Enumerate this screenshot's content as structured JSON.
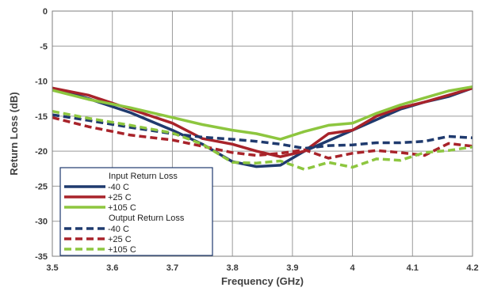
{
  "chart_data": {
    "type": "line",
    "title": "",
    "xlabel": "Frequency (GHz)",
    "ylabel": "Return Loss (dB)",
    "xlim": [
      3.5,
      4.2
    ],
    "ylim": [
      -35,
      0
    ],
    "x_ticks": [
      "3.5",
      "3.6",
      "3.7",
      "3.8",
      "3.9",
      "4",
      "4.1",
      "4.2"
    ],
    "y_ticks": [
      "0",
      "-5",
      "-10",
      "-15",
      "-20",
      "-25",
      "-30",
      "-35"
    ],
    "grid": true,
    "legend": {
      "placement": "bottom-left",
      "groups": [
        {
          "header": "Input Return Loss",
          "entries": [
            "-40 C",
            "+25 C",
            "+105 C"
          ]
        },
        {
          "header": "Output Return Loss",
          "entries": [
            "-40 C",
            "+25 C",
            "+105 C"
          ]
        }
      ]
    },
    "colors": {
      "-40 C": "#1f3a6e",
      "+25 C": "#a8232a",
      "+105 C": "#8dc63f"
    },
    "series": [
      {
        "name": "-40 C",
        "group": "Input Return Loss",
        "style": "solid",
        "x": [
          3.5,
          3.56,
          3.63,
          3.7,
          3.75,
          3.8,
          3.84,
          3.88,
          3.92,
          3.96,
          4.0,
          4.04,
          4.08,
          4.12,
          4.16,
          4.2
        ],
        "y": [
          -11,
          -12.5,
          -14.5,
          -17,
          -19,
          -21.5,
          -22.2,
          -22,
          -20,
          -18.5,
          -17,
          -15.5,
          -14,
          -13,
          -12.2,
          -11
        ]
      },
      {
        "name": "+25 C",
        "group": "Input Return Loss",
        "style": "solid",
        "x": [
          3.5,
          3.56,
          3.63,
          3.7,
          3.75,
          3.8,
          3.84,
          3.88,
          3.92,
          3.96,
          4.0,
          4.04,
          4.08,
          4.12,
          4.16,
          4.2
        ],
        "y": [
          -11,
          -12,
          -14,
          -16,
          -18.2,
          -19,
          -20,
          -20.8,
          -20,
          -17.5,
          -17,
          -15,
          -13.8,
          -13,
          -12,
          -11
        ]
      },
      {
        "name": "+105 C",
        "group": "Input Return Loss",
        "style": "solid",
        "x": [
          3.5,
          3.56,
          3.63,
          3.7,
          3.75,
          3.8,
          3.84,
          3.88,
          3.92,
          3.96,
          4.0,
          4.04,
          4.08,
          4.12,
          4.16,
          4.2
        ],
        "y": [
          -11.3,
          -12.6,
          -13.8,
          -15.2,
          -16.2,
          -17,
          -17.5,
          -18.3,
          -17.2,
          -16.3,
          -16,
          -14.6,
          -13.4,
          -12.4,
          -11.4,
          -10.8
        ]
      },
      {
        "name": "-40 C",
        "group": "Output Return Loss",
        "style": "dashed",
        "x": [
          3.5,
          3.56,
          3.63,
          3.7,
          3.75,
          3.8,
          3.84,
          3.88,
          3.92,
          3.96,
          4.0,
          4.04,
          4.08,
          4.12,
          4.16,
          4.2
        ],
        "y": [
          -14.8,
          -15.6,
          -16.6,
          -17.5,
          -18,
          -18.3,
          -18.6,
          -19,
          -19.6,
          -19.2,
          -19.1,
          -18.8,
          -18.8,
          -18.6,
          -17.9,
          -18.1
        ]
      },
      {
        "name": "+25 C",
        "group": "Output Return Loss",
        "style": "dashed",
        "x": [
          3.5,
          3.56,
          3.63,
          3.7,
          3.75,
          3.8,
          3.84,
          3.88,
          3.92,
          3.96,
          4.0,
          4.04,
          4.08,
          4.12,
          4.16,
          4.2
        ],
        "y": [
          -15.2,
          -16.5,
          -17.7,
          -18.4,
          -19.3,
          -20.2,
          -20.6,
          -20.3,
          -19.8,
          -21,
          -20.3,
          -19.9,
          -20.2,
          -20.6,
          -18.9,
          -19.3
        ]
      },
      {
        "name": "+105 C",
        "group": "Output Return Loss",
        "style": "dashed",
        "x": [
          3.5,
          3.56,
          3.63,
          3.7,
          3.75,
          3.8,
          3.84,
          3.88,
          3.92,
          3.96,
          4.0,
          4.04,
          4.08,
          4.12,
          4.16,
          4.2
        ],
        "y": [
          -14.3,
          -15.3,
          -16.3,
          -17.4,
          -19,
          -21.6,
          -21.7,
          -21.4,
          -22.6,
          -21.6,
          -22.3,
          -21.1,
          -21.3,
          -20.2,
          -19.9,
          -19.4
        ]
      }
    ]
  }
}
